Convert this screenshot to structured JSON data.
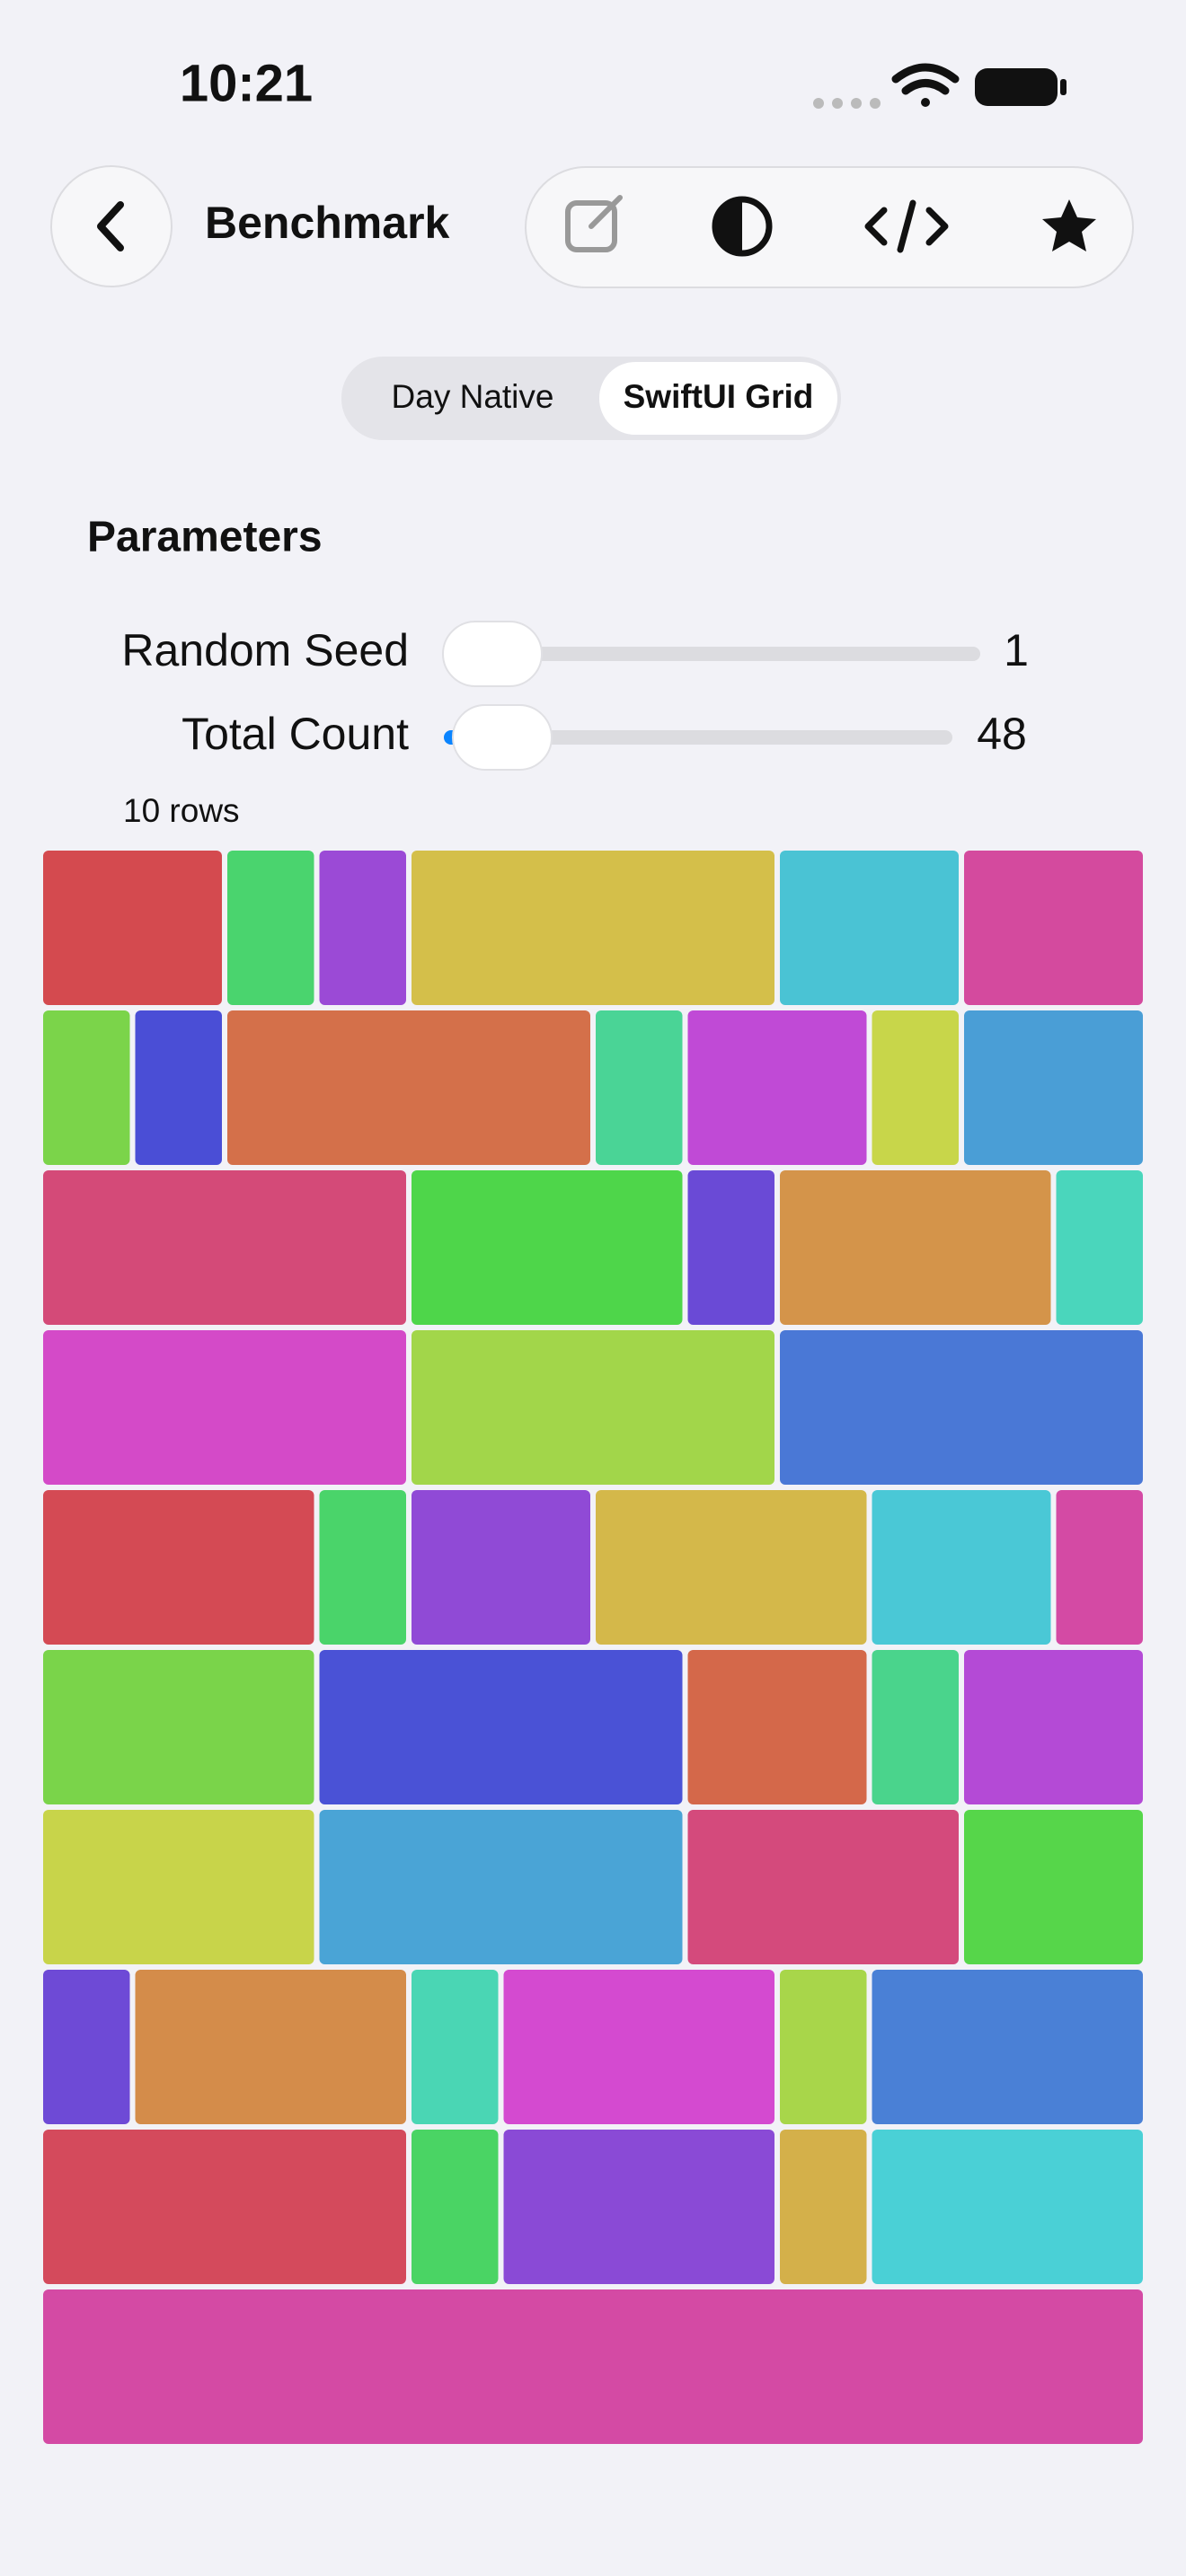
{
  "status": {
    "time": "10:21"
  },
  "nav": {
    "title": "Benchmark"
  },
  "segments": {
    "items": [
      "Day Native",
      "SwiftUI Grid"
    ],
    "selected": 1
  },
  "parameters": {
    "title": "Parameters",
    "sliders": [
      {
        "label": "Random Seed",
        "value": 1
      },
      {
        "label": "Total Count",
        "value": 48
      }
    ]
  },
  "grid": {
    "caption": "10 rows",
    "rows": [
      [
        {
          "color": "#d44a4f",
          "span": 2
        },
        {
          "color": "#4ad46e",
          "span": 1
        },
        {
          "color": "#9b4ad6",
          "span": 1
        },
        {
          "color": "#d4bf4a",
          "span": 4
        },
        {
          "color": "#4ac3d4",
          "span": 2
        },
        {
          "color": "#d44a9e",
          "span": 2
        }
      ],
      [
        {
          "color": "#7bd44a",
          "span": 1
        },
        {
          "color": "#4a4ed6",
          "span": 1
        },
        {
          "color": "#d4704a",
          "span": 4
        },
        {
          "color": "#4ad496",
          "span": 1
        },
        {
          "color": "#c04ad6",
          "span": 2
        },
        {
          "color": "#c8d64a",
          "span": 1
        },
        {
          "color": "#4a9ed6",
          "span": 2
        }
      ],
      [
        {
          "color": "#d44a78",
          "span": 4
        },
        {
          "color": "#4ed64a",
          "span": 3
        },
        {
          "color": "#6a4ad6",
          "span": 1
        },
        {
          "color": "#d4944a",
          "span": 3
        },
        {
          "color": "#4ad6bc",
          "span": 1
        }
      ],
      [
        {
          "color": "#d44ac8",
          "span": 4
        },
        {
          "color": "#a2d64a",
          "span": 4
        },
        {
          "color": "#4a78d6",
          "span": 4
        }
      ],
      [
        {
          "color": "#d44a54",
          "span": 3
        },
        {
          "color": "#4ad46a",
          "span": 1
        },
        {
          "color": "#904ad6",
          "span": 2
        },
        {
          "color": "#d4b84a",
          "span": 3
        },
        {
          "color": "#4ac8d6",
          "span": 2
        },
        {
          "color": "#d44aa4",
          "span": 1
        }
      ],
      [
        {
          "color": "#7ad44a",
          "span": 3
        },
        {
          "color": "#4a52d6",
          "span": 4
        },
        {
          "color": "#d4684a",
          "span": 2
        },
        {
          "color": "#4ad48c",
          "span": 1
        },
        {
          "color": "#b44ad6",
          "span": 2
        }
      ],
      [
        {
          "color": "#c8d44a",
          "span": 3
        },
        {
          "color": "#4aa4d6",
          "span": 4
        },
        {
          "color": "#d44a7c",
          "span": 3
        },
        {
          "color": "#56d64a",
          "span": 2
        }
      ],
      [
        {
          "color": "#6e4ad6",
          "span": 1
        },
        {
          "color": "#d48c4a",
          "span": 3
        },
        {
          "color": "#4ad6b4",
          "span": 1
        },
        {
          "color": "#d44ad0",
          "span": 3
        },
        {
          "color": "#a8d64a",
          "span": 1
        },
        {
          "color": "#4a80d6",
          "span": 3
        }
      ],
      [
        {
          "color": "#d44a5c",
          "span": 4
        },
        {
          "color": "#4ad464",
          "span": 1
        },
        {
          "color": "#8a4ad6",
          "span": 3
        },
        {
          "color": "#d4b04a",
          "span": 1
        },
        {
          "color": "#4ad0d6",
          "span": 3
        }
      ],
      [
        {
          "color": "#d44aa4",
          "span": 12
        }
      ]
    ]
  }
}
